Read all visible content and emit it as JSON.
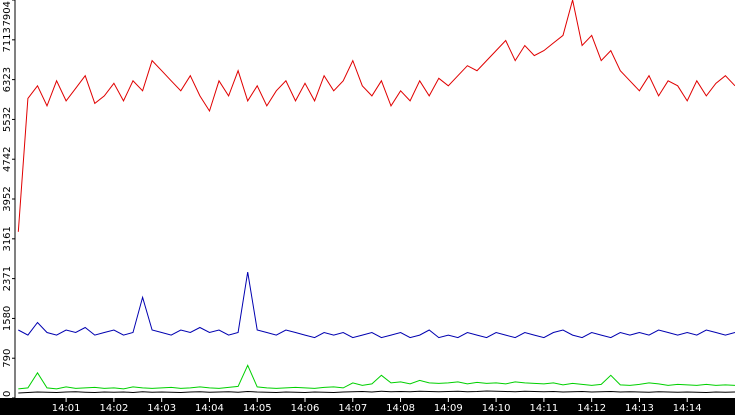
{
  "chart_data": {
    "type": "line",
    "x": [
      0,
      0.2,
      0.4,
      0.6,
      0.8,
      1,
      1.2,
      1.4,
      1.6,
      1.8,
      2,
      2.2,
      2.4,
      2.6,
      2.8,
      3,
      3.2,
      3.4,
      3.6,
      3.8,
      4,
      4.2,
      4.4,
      4.6,
      4.8,
      5,
      5.2,
      5.4,
      5.6,
      5.8,
      6,
      6.2,
      6.4,
      6.6,
      6.8,
      7,
      7.2,
      7.4,
      7.6,
      7.8,
      8,
      8.2,
      8.4,
      8.6,
      8.8,
      9,
      9.2,
      9.4,
      9.6,
      9.8,
      10,
      10.2,
      10.4,
      10.6,
      10.8,
      11,
      11.2,
      11.4,
      11.6,
      11.8,
      12,
      12.2,
      12.4,
      12.6,
      12.8,
      13,
      13.2,
      13.4,
      13.6,
      13.8,
      14,
      14.2,
      14.4,
      14.6,
      14.8,
      15
    ],
    "series": [
      {
        "color": "#e00000",
        "values": [
          3300,
          5950,
          6200,
          5800,
          6300,
          5900,
          6150,
          6400,
          5850,
          6000,
          6250,
          5900,
          6300,
          6100,
          6700,
          6500,
          6300,
          6100,
          6400,
          6000,
          5700,
          6300,
          6000,
          6500,
          5900,
          6200,
          5800,
          6100,
          6300,
          5900,
          6250,
          5900,
          6400,
          6100,
          6300,
          6700,
          6200,
          6000,
          6300,
          5800,
          6100,
          5900,
          6300,
          6000,
          6350,
          6200,
          6400,
          6600,
          6500,
          6700,
          6900,
          7100,
          6700,
          7000,
          6800,
          6900,
          7050,
          7200,
          7904,
          7000,
          7200,
          6700,
          6900,
          6500,
          6300,
          6100,
          6400,
          6000,
          6300,
          6200,
          5900,
          6300,
          6000,
          6250,
          6400,
          6200
        ]
      },
      {
        "color": "#0000b0",
        "values": [
          1350,
          1250,
          1500,
          1300,
          1250,
          1350,
          1300,
          1400,
          1250,
          1300,
          1350,
          1250,
          1300,
          2000,
          1350,
          1300,
          1250,
          1350,
          1300,
          1400,
          1300,
          1350,
          1250,
          1300,
          2500,
          1350,
          1300,
          1250,
          1350,
          1300,
          1250,
          1200,
          1300,
          1250,
          1300,
          1200,
          1250,
          1300,
          1200,
          1250,
          1300,
          1200,
          1250,
          1350,
          1200,
          1250,
          1200,
          1300,
          1250,
          1200,
          1300,
          1250,
          1200,
          1300,
          1250,
          1200,
          1300,
          1350,
          1250,
          1200,
          1300,
          1250,
          1200,
          1300,
          1250,
          1300,
          1250,
          1350,
          1300,
          1250,
          1300,
          1250,
          1350,
          1300,
          1250,
          1300
        ]
      },
      {
        "color": "#00d000",
        "values": [
          180,
          200,
          500,
          200,
          180,
          220,
          190,
          200,
          210,
          190,
          200,
          180,
          220,
          200,
          190,
          200,
          210,
          190,
          200,
          220,
          200,
          190,
          210,
          230,
          650,
          220,
          200,
          190,
          200,
          210,
          200,
          190,
          210,
          220,
          200,
          300,
          250,
          280,
          450,
          300,
          320,
          280,
          350,
          300,
          290,
          300,
          320,
          280,
          310,
          290,
          300,
          280,
          320,
          300,
          290,
          280,
          300,
          260,
          290,
          270,
          250,
          270,
          450,
          260,
          250,
          270,
          300,
          280,
          250,
          270,
          260,
          250,
          270,
          250,
          260,
          250
        ]
      },
      {
        "color": "#000000",
        "values": [
          100,
          110,
          120,
          115,
          110,
          120,
          125,
          115,
          110,
          120,
          115,
          120,
          110,
          125,
          115,
          120,
          115,
          110,
          120,
          125,
          115,
          120,
          125,
          115,
          130,
          120,
          115,
          110,
          120,
          115,
          110,
          120,
          115,
          110,
          120,
          125,
          130,
          120,
          135,
          125,
          130,
          125,
          135,
          130,
          125,
          130,
          135,
          125,
          130,
          140,
          135,
          130,
          125,
          135,
          130,
          125,
          130,
          120,
          125,
          130,
          120,
          125,
          130,
          120,
          125,
          120,
          115,
          125,
          120,
          115,
          120,
          115,
          110,
          120,
          115,
          120
        ]
      }
    ],
    "xlim": [
      -0.07,
      15
    ],
    "xticks": [
      {
        "value": 1,
        "label": "14:01"
      },
      {
        "value": 2,
        "label": "14:02"
      },
      {
        "value": 3,
        "label": "14:03"
      },
      {
        "value": 4,
        "label": "14:04"
      },
      {
        "value": 5,
        "label": "14:05"
      },
      {
        "value": 6,
        "label": "14:06"
      },
      {
        "value": 7,
        "label": "14:07"
      },
      {
        "value": 8,
        "label": "14:08"
      },
      {
        "value": 9,
        "label": "14:09"
      },
      {
        "value": 10,
        "label": "14:10"
      },
      {
        "value": 11,
        "label": "14:11"
      },
      {
        "value": 12,
        "label": "14:12"
      },
      {
        "value": 13,
        "label": "14:13"
      },
      {
        "value": 14,
        "label": "14:14"
      }
    ],
    "ylim": [
      0,
      7904
    ],
    "yticks": [
      0,
      790,
      1580,
      2371,
      3161,
      3952,
      4742,
      5532,
      6323,
      7113,
      7904
    ]
  }
}
